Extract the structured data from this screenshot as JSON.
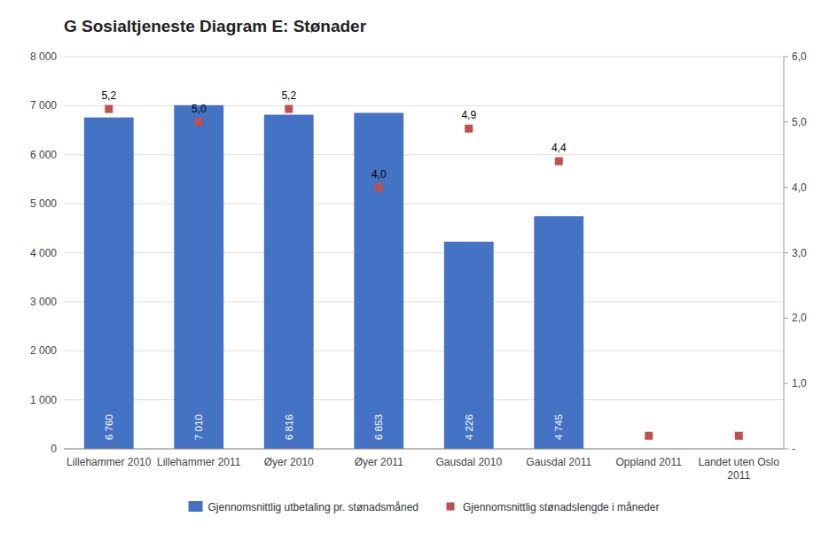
{
  "chart_data": {
    "type": "bar",
    "title": "G Sosialtjeneste Diagram E: Stønader",
    "categories": [
      "Lillehammer 2010",
      "Lillehammer 2011",
      "Øyer 2010",
      "Øyer 2011",
      "Gausdal 2010",
      "Gausdal 2011",
      "Oppland 2011",
      "Landet uten Oslo\n2011"
    ],
    "series": [
      {
        "name": "Gjennomsnittlig utbetaling pr. stønadsmåned",
        "type": "bar",
        "color": "#4472C4",
        "values": [
          6760,
          7010,
          6816,
          6853,
          4226,
          4745,
          0,
          0
        ],
        "value_labels": [
          "6 760",
          "7 010",
          "6 816",
          "6 853",
          "4 226",
          "4 745",
          null,
          null
        ]
      },
      {
        "name": "Gjennomsnittlig stønadslengde i måneder",
        "type": "scatter",
        "marker": "square",
        "axis": "y2",
        "color": "#C0504D",
        "values": [
          5.2,
          5.0,
          5.2,
          4.0,
          4.9,
          4.4,
          0.2,
          0.2
        ],
        "value_labels": [
          "5,2",
          "5,0",
          "5,2",
          "4,0",
          "4,9",
          "4,4",
          null,
          null
        ]
      }
    ],
    "ylim": [
      0,
      8000
    ],
    "yticks": [
      0,
      {
        "value": 1000,
        "label": "1 000"
      },
      {
        "value": 2000,
        "label": "2 000"
      },
      {
        "value": 3000,
        "label": "3 000"
      },
      {
        "value": 4000,
        "label": "4 000"
      },
      {
        "value": 5000,
        "label": "5 000"
      },
      {
        "value": 6000,
        "label": "6 000"
      },
      {
        "value": 7000,
        "label": "7 000"
      },
      {
        "value": 8000,
        "label": "8 000"
      }
    ],
    "y2lim": [
      0,
      6.0
    ],
    "y2ticks": [
      {
        "value": 0.0,
        "label": "-"
      },
      {
        "value": 1.0,
        "label": "1,0"
      },
      {
        "value": 2.0,
        "label": "2,0"
      },
      {
        "value": 3.0,
        "label": "3,0"
      },
      {
        "value": 4.0,
        "label": "4,0"
      },
      {
        "value": 5.0,
        "label": "5,0"
      },
      {
        "value": 6.0,
        "label": "6,0"
      }
    ],
    "grid": true,
    "legend": "bottom",
    "data_labels": true
  }
}
